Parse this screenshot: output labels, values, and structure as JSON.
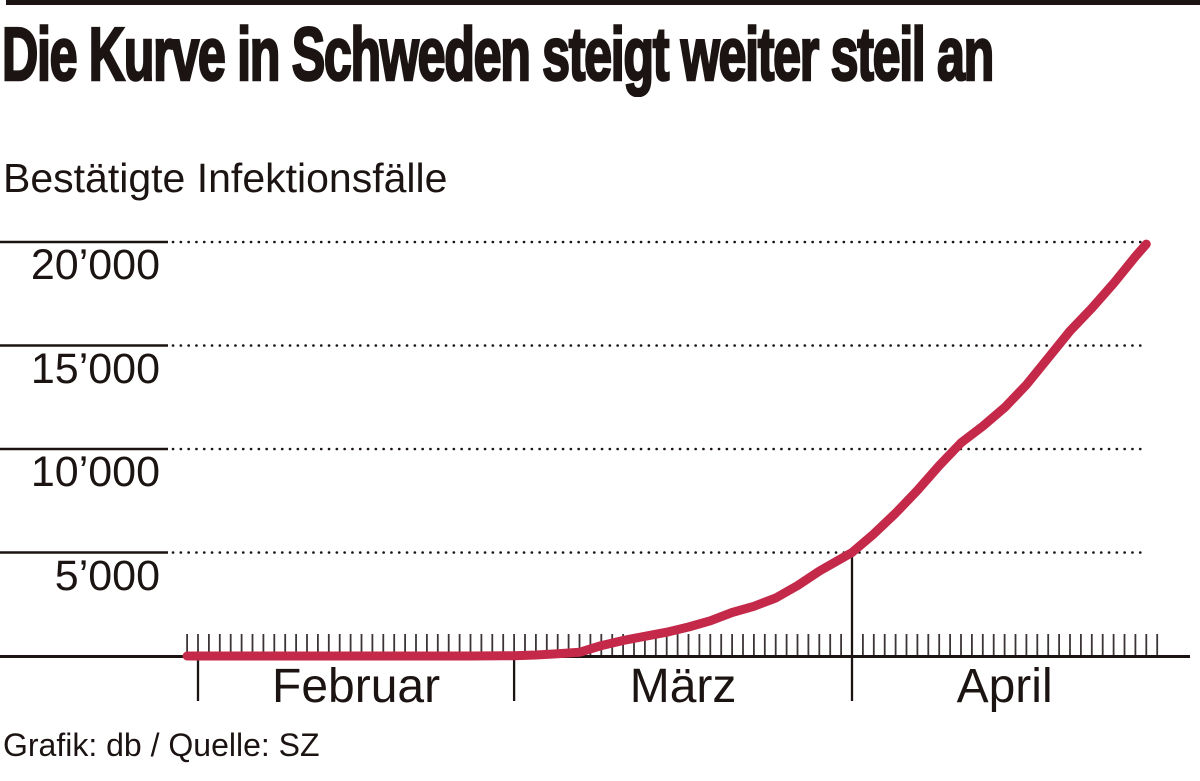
{
  "header": {
    "title": "Die Kurve in Schweden steigt weiter steil an",
    "subtitle": "Bestätigte Infektionsfälle"
  },
  "footer": {
    "credit": "Grafik: db / Quelle: SZ"
  },
  "colors": {
    "curve": "#c5294a",
    "ink": "#1b1412",
    "tick": "#3c3535",
    "background": "#ffffff"
  },
  "chart_data": {
    "type": "line",
    "title": "Die Kurve in Schweden steigt weiter steil an",
    "subtitle": "Bestätigte Infektionsfälle",
    "source": "Grafik: db / Quelle: SZ",
    "x_type": "date",
    "x_epoch": "2020-02-01",
    "x_range": [
      "2020-01-31",
      "2020-04-29"
    ],
    "xlabel": "",
    "ylabel": "Bestätigte Infektionsfälle",
    "ylim": [
      0,
      20500
    ],
    "grid": "horizontal, solid stub at left then dotted",
    "legend": "none",
    "y_ticks": [
      {
        "label": "20’000",
        "value": 20000
      },
      {
        "label": "15’000",
        "value": 15000
      },
      {
        "label": "10’000",
        "value": 10000
      },
      {
        "label": "5’000",
        "value": 5000
      }
    ],
    "x_months": [
      {
        "label": "Februar",
        "start": "2020-02-01",
        "end": "2020-03-01"
      },
      {
        "label": "März",
        "start": "2020-03-01",
        "end": "2020-04-01"
      },
      {
        "label": "April",
        "start": "2020-04-01",
        "end": "2020-04-29",
        "marker_to_value": 5000
      }
    ],
    "series": [
      {
        "name": "Bestätigte Infektionsfälle",
        "points": [
          [
            "2020-01-31",
            1
          ],
          [
            "2020-02-04",
            1
          ],
          [
            "2020-02-09",
            1
          ],
          [
            "2020-02-14",
            1
          ],
          [
            "2020-02-19",
            1
          ],
          [
            "2020-02-24",
            1
          ],
          [
            "2020-02-26",
            2
          ],
          [
            "2020-02-29",
            13
          ],
          [
            "2020-03-01",
            15
          ],
          [
            "2020-03-03",
            50
          ],
          [
            "2020-03-05",
            110
          ],
          [
            "2020-03-07",
            180
          ],
          [
            "2020-03-09",
            500
          ],
          [
            "2020-03-11",
            750
          ],
          [
            "2020-03-13",
            950
          ],
          [
            "2020-03-15",
            1150
          ],
          [
            "2020-03-17",
            1400
          ],
          [
            "2020-03-19",
            1700
          ],
          [
            "2020-03-21",
            2100
          ],
          [
            "2020-03-23",
            2400
          ],
          [
            "2020-03-25",
            2800
          ],
          [
            "2020-03-27",
            3400
          ],
          [
            "2020-03-29",
            4100
          ],
          [
            "2020-03-31",
            4700
          ],
          [
            "2020-04-01",
            5000
          ],
          [
            "2020-04-03",
            5900
          ],
          [
            "2020-04-05",
            6900
          ],
          [
            "2020-04-07",
            8000
          ],
          [
            "2020-04-09",
            9200
          ],
          [
            "2020-04-11",
            10300
          ],
          [
            "2020-04-13",
            11100
          ],
          [
            "2020-04-15",
            12000
          ],
          [
            "2020-04-17",
            13100
          ],
          [
            "2020-04-19",
            14400
          ],
          [
            "2020-04-21",
            15700
          ],
          [
            "2020-04-23",
            16800
          ],
          [
            "2020-04-25",
            18000
          ],
          [
            "2020-04-27",
            19300
          ],
          [
            "2020-04-28",
            19900
          ]
        ]
      }
    ]
  }
}
